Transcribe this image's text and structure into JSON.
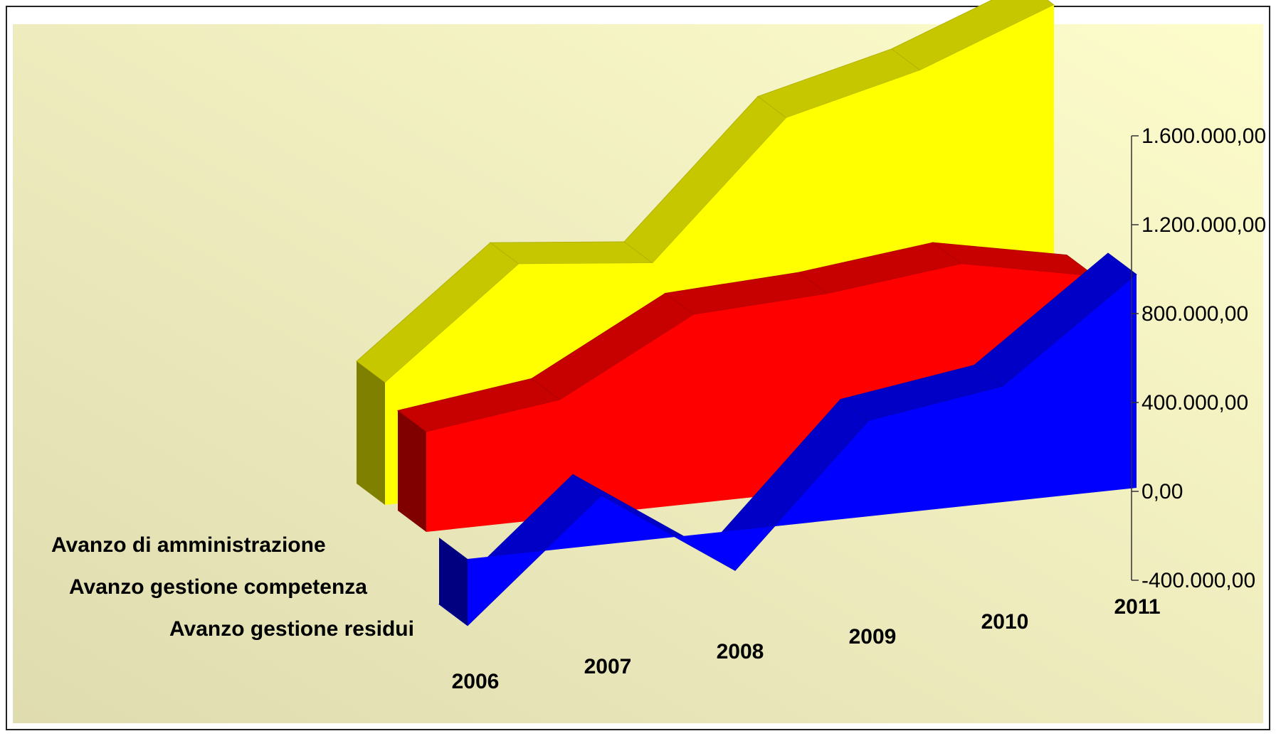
{
  "chart_data": {
    "type": "area",
    "variant": "3d-stacked-depth",
    "title": "",
    "xlabel": "",
    "ylabel": "",
    "categories": [
      "2006",
      "2007",
      "2008",
      "2009",
      "2010",
      "2011"
    ],
    "ylim": [
      -400000,
      1600000
    ],
    "yticks": [
      -400000,
      0,
      400000,
      800000,
      1200000,
      1600000
    ],
    "ytick_labels": [
      "-400.000,00",
      "0,00",
      "400.000,00",
      "800.000,00",
      "1.200.000,00",
      "1.600.000,00"
    ],
    "grid": false,
    "legend": "none",
    "series": [
      {
        "name": "Avanzo di amministrazione",
        "color": "#ffff00",
        "values": [
          550000,
          1020000,
          960000,
          1550000,
          1700000,
          1930000
        ]
      },
      {
        "name": "Avanzo gestione competenza",
        "color": "#ff0000",
        "values": [
          450000,
          530000,
          850000,
          880000,
          950000,
          830000
        ]
      },
      {
        "name": "Avanzo gestione residui",
        "color": "#0000ff",
        "values": [
          -300000,
          220000,
          -180000,
          430000,
          520000,
          960000
        ]
      }
    ]
  }
}
